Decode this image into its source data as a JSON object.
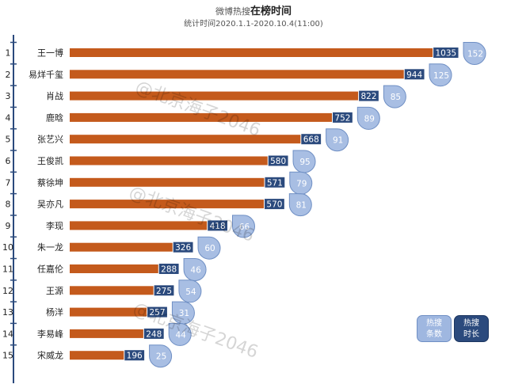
{
  "title_prefix": "微博热搜",
  "title_emphasis": "在榜时间",
  "subtitle": "统计时间2020.1.1-2020.10.4(11:00)",
  "watermark": "@北京海子2046",
  "legend": {
    "count_line1": "热搜",
    "count_line2": "条数",
    "hours_line1": "热搜",
    "hours_line2": "时长"
  },
  "colors": {
    "bar": "#c45a1c",
    "value_box": "#2b4a7d",
    "bubble": "#9fb7e0",
    "rank_axis": "#2b4a7d"
  },
  "chart_data": {
    "type": "bar",
    "orientation": "horizontal",
    "categories": [
      "王一博",
      "易烊千玺",
      "肖战",
      "鹿晗",
      "张艺兴",
      "王俊凯",
      "蔡徐坤",
      "吴亦凡",
      "李现",
      "朱一龙",
      "任嘉伦",
      "王源",
      "杨洋",
      "李易峰",
      "宋威龙"
    ],
    "ranks": [
      "1",
      "2",
      "3",
      "4",
      "5",
      "6",
      "7",
      "8",
      "9",
      "10",
      "11",
      "12",
      "13",
      "14",
      "15"
    ],
    "series": [
      {
        "name": "热搜时长",
        "values": [
          1035,
          944,
          822,
          752,
          668,
          580,
          571,
          570,
          418,
          326,
          288,
          275,
          257,
          248,
          196
        ]
      },
      {
        "name": "热搜条数",
        "values": [
          152,
          125,
          85,
          89,
          91,
          95,
          79,
          81,
          66,
          60,
          46,
          54,
          31,
          44,
          25
        ]
      }
    ],
    "xlim": [
      0,
      1200
    ]
  }
}
